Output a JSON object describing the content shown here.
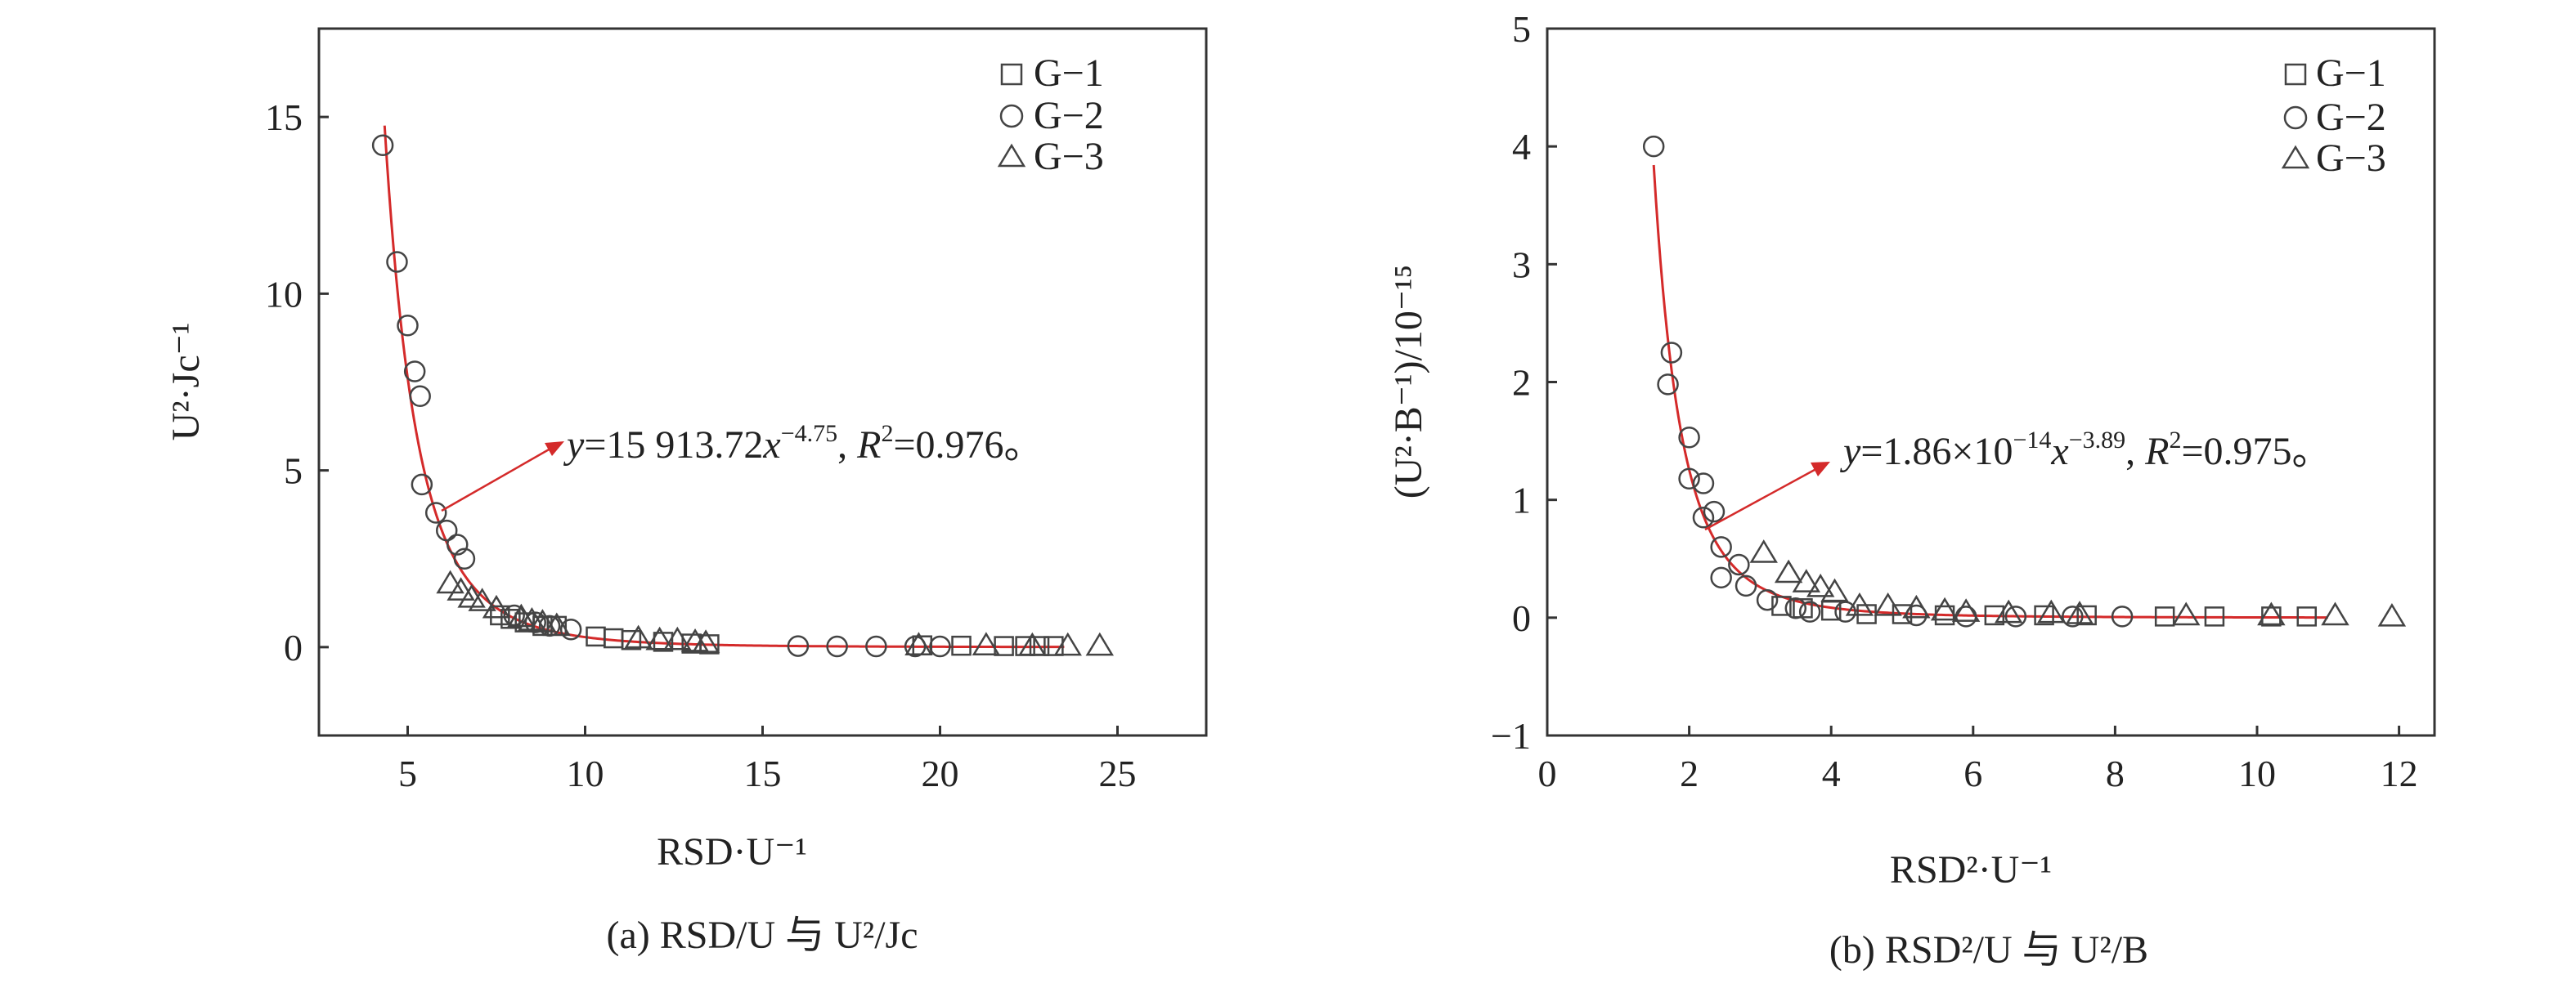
{
  "chart_data": [
    {
      "id": "a",
      "type": "scatter",
      "caption": "(a) RSD/U 与 U²/Jc",
      "xlabel": "RSD·U⁻¹",
      "ylabel": "U²·Jc⁻¹",
      "xlim": [
        2.5,
        27.5
      ],
      "ylim": [
        -2.5,
        17.5
      ],
      "xticks": [
        5,
        10,
        15,
        20,
        25
      ],
      "yticks": [
        0,
        5,
        10,
        15
      ],
      "legend_position": "top-right",
      "series": [
        {
          "name": "G−1",
          "marker": "square",
          "points": [
            [
              7.6,
              0.9
            ],
            [
              7.9,
              0.8
            ],
            [
              8.3,
              0.7
            ],
            [
              8.8,
              0.6
            ],
            [
              9.2,
              0.6
            ],
            [
              10.3,
              0.3
            ],
            [
              10.8,
              0.25
            ],
            [
              11.3,
              0.2
            ],
            [
              12.2,
              0.15
            ],
            [
              13.0,
              0.1
            ],
            [
              13.5,
              0.08
            ],
            [
              19.5,
              0.05
            ],
            [
              20.6,
              0.04
            ],
            [
              21.8,
              0.03
            ],
            [
              22.4,
              0.03
            ],
            [
              22.8,
              0.03
            ],
            [
              23.2,
              0.03
            ]
          ]
        },
        {
          "name": "G−2",
          "marker": "circle",
          "points": [
            [
              4.3,
              14.2
            ],
            [
              4.7,
              10.9
            ],
            [
              5.0,
              9.1
            ],
            [
              5.2,
              7.8
            ],
            [
              5.35,
              7.1
            ],
            [
              5.4,
              4.6
            ],
            [
              5.8,
              3.8
            ],
            [
              6.1,
              3.3
            ],
            [
              6.4,
              2.9
            ],
            [
              6.6,
              2.5
            ],
            [
              8.0,
              0.9
            ],
            [
              8.6,
              0.7
            ],
            [
              9.0,
              0.6
            ],
            [
              9.6,
              0.5
            ],
            [
              16.0,
              0.03
            ],
            [
              17.1,
              0.02
            ],
            [
              18.2,
              0.02
            ],
            [
              19.3,
              0.02
            ],
            [
              20.0,
              0.02
            ]
          ]
        },
        {
          "name": "G−3",
          "marker": "triangle",
          "points": [
            [
              6.2,
              1.8
            ],
            [
              6.5,
              1.6
            ],
            [
              6.8,
              1.4
            ],
            [
              7.1,
              1.3
            ],
            [
              7.5,
              1.1
            ],
            [
              8.2,
              0.85
            ],
            [
              8.5,
              0.75
            ],
            [
              8.8,
              0.7
            ],
            [
              9.2,
              0.6
            ],
            [
              11.5,
              0.25
            ],
            [
              12.1,
              0.2
            ],
            [
              12.6,
              0.2
            ],
            [
              13.1,
              0.15
            ],
            [
              13.4,
              0.12
            ],
            [
              19.4,
              0.05
            ],
            [
              21.3,
              0.05
            ],
            [
              22.6,
              0.04
            ],
            [
              23.6,
              0.04
            ],
            [
              24.5,
              0.04
            ]
          ]
        }
      ],
      "fit": {
        "coef": 15913.72,
        "exp": -4.75,
        "x_from": 4.35,
        "x_to": 23.5
      },
      "equation": {
        "y": "y",
        "eq1": "=15 913.72",
        "x": "x",
        "sup": "−4.75",
        "sep": ", ",
        "r": "R",
        "r2sup": "2",
        "r2val": "=0.976。"
      }
    },
    {
      "id": "b",
      "type": "scatter",
      "caption": "(b) RSD²/U 与 U²/B",
      "xlabel": "RSD²·U⁻¹",
      "ylabel": "(U²·B⁻¹)/10⁻¹⁵",
      "xlim": [
        0,
        12.5
      ],
      "ylim": [
        -1,
        5
      ],
      "xticks": [
        0,
        2,
        4,
        6,
        8,
        10,
        12
      ],
      "yticks": [
        -1,
        0,
        1,
        2,
        3,
        4,
        5
      ],
      "legend_position": "top-right",
      "series": [
        {
          "name": "G−1",
          "marker": "square",
          "points": [
            [
              3.3,
              0.1
            ],
            [
              3.6,
              0.08
            ],
            [
              4.0,
              0.06
            ],
            [
              4.5,
              0.03
            ],
            [
              5.0,
              0.03
            ],
            [
              5.6,
              0.02
            ],
            [
              6.3,
              0.02
            ],
            [
              7.0,
              0.02
            ],
            [
              7.6,
              0.02
            ],
            [
              8.7,
              0.01
            ],
            [
              9.4,
              0.01
            ],
            [
              10.2,
              0.01
            ],
            [
              10.7,
              0.01
            ]
          ]
        },
        {
          "name": "G−2",
          "marker": "circle",
          "points": [
            [
              1.5,
              4.0
            ],
            [
              1.75,
              2.25
            ],
            [
              1.7,
              1.98
            ],
            [
              2.0,
              1.53
            ],
            [
              2.0,
              1.18
            ],
            [
              2.2,
              1.14
            ],
            [
              2.2,
              0.85
            ],
            [
              2.35,
              0.9
            ],
            [
              2.45,
              0.6
            ],
            [
              2.45,
              0.34
            ],
            [
              2.7,
              0.45
            ],
            [
              2.8,
              0.27
            ],
            [
              3.1,
              0.15
            ],
            [
              3.5,
              0.08
            ],
            [
              3.7,
              0.05
            ],
            [
              4.2,
              0.05
            ],
            [
              5.2,
              0.02
            ],
            [
              5.9,
              0.01
            ],
            [
              6.6,
              0.01
            ],
            [
              7.4,
              0.01
            ],
            [
              8.1,
              0.01
            ]
          ]
        },
        {
          "name": "G−3",
          "marker": "triangle",
          "points": [
            [
              3.05,
              0.55
            ],
            [
              3.4,
              0.38
            ],
            [
              3.65,
              0.3
            ],
            [
              3.85,
              0.26
            ],
            [
              4.05,
              0.22
            ],
            [
              4.4,
              0.1
            ],
            [
              4.8,
              0.1
            ],
            [
              5.2,
              0.08
            ],
            [
              5.6,
              0.06
            ],
            [
              5.9,
              0.05
            ],
            [
              6.5,
              0.04
            ],
            [
              7.1,
              0.04
            ],
            [
              7.5,
              0.03
            ],
            [
              9.0,
              0.02
            ],
            [
              10.2,
              0.02
            ],
            [
              11.1,
              0.02
            ],
            [
              11.9,
              0.01
            ]
          ]
        }
      ],
      "fit": {
        "coef": 18.6,
        "exp": -3.89,
        "x_from": 1.5,
        "x_to": 11.0
      },
      "equation": {
        "y": "y",
        "eq1": "=1.86×10",
        "sup1": "−14",
        "x": "x",
        "sup2": "−3.89",
        "sep": ", ",
        "r": "R",
        "r2sup": "2",
        "r2val": "=0.975。"
      }
    }
  ]
}
